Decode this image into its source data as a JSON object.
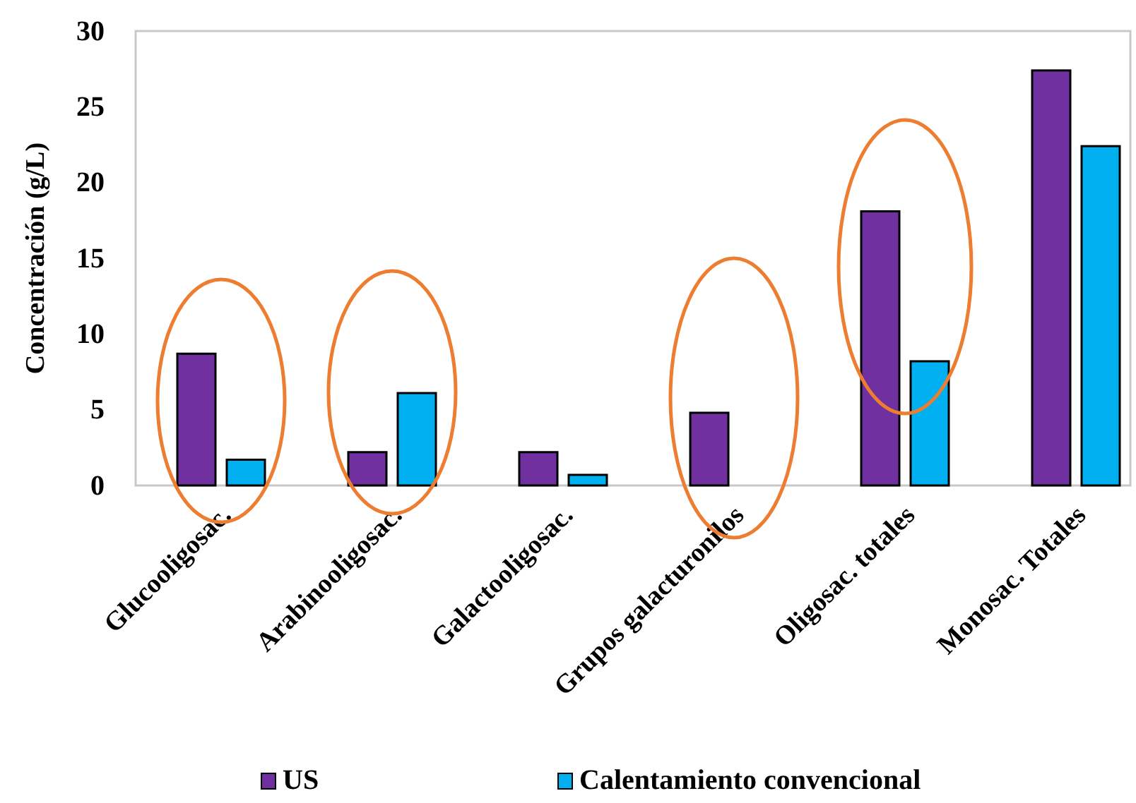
{
  "chart_data": {
    "type": "bar",
    "ylabel": "Concentración (g/L)",
    "categories": [
      "Glucooligosac.",
      "Arabinooligosac.",
      "Galactooligosac.",
      "Grupos galacturonilos",
      "Oligosac. totales",
      "Monosac. Totales"
    ],
    "series": [
      {
        "name": "US",
        "color": "#7030a0",
        "values": [
          8.7,
          2.2,
          2.2,
          4.8,
          18.1,
          27.4
        ]
      },
      {
        "name": "Calentamiento convencional",
        "color": "#00b0f0",
        "values": [
          1.7,
          6.1,
          0.7,
          null,
          8.2,
          22.4
        ]
      }
    ],
    "ylim": [
      0,
      30
    ],
    "yticks": [
      0,
      5,
      10,
      15,
      20,
      25,
      30
    ],
    "grid": false,
    "legend": "bottom"
  }
}
